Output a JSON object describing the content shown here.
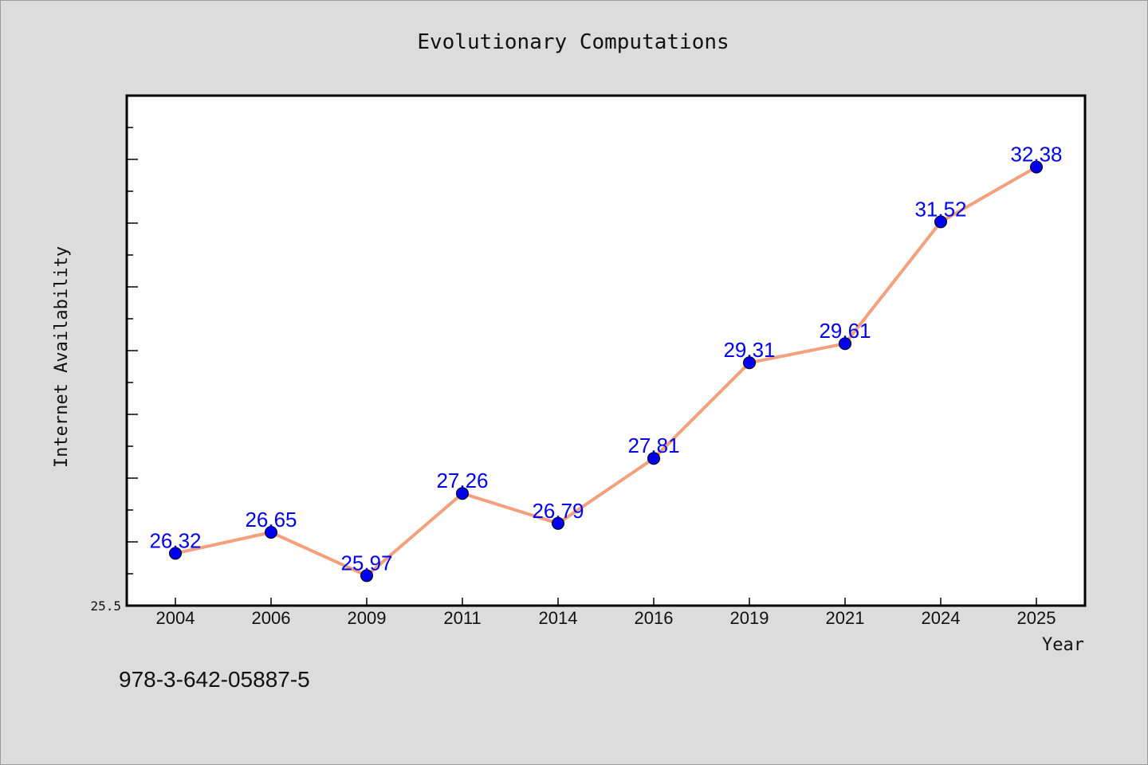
{
  "chart_data": {
    "type": "line",
    "title": "Evolutionary Computations",
    "xlabel": "Year",
    "ylabel": "Internet Availability",
    "categories": [
      "2004",
      "2006",
      "2009",
      "2011",
      "2014",
      "2016",
      "2019",
      "2021",
      "2024",
      "2025"
    ],
    "values": [
      26.32,
      26.65,
      25.97,
      27.26,
      26.79,
      27.81,
      29.31,
      29.61,
      31.52,
      32.38
    ],
    "data_labels": [
      "26.32",
      "26.65",
      "25.97",
      "27.26",
      "26.79",
      "27.81",
      "29.31",
      "29.61",
      "31.52",
      "32.38"
    ],
    "ylim": [
      25.5,
      33.5
    ],
    "y_tick_labels": [
      "25.5"
    ],
    "grid": false,
    "legend": "none",
    "line_color": "#f4a07c",
    "marker_color": "#0000ee",
    "label_color": "#0000ee"
  },
  "footer": {
    "isbn": "978-3-642-05887-5"
  }
}
